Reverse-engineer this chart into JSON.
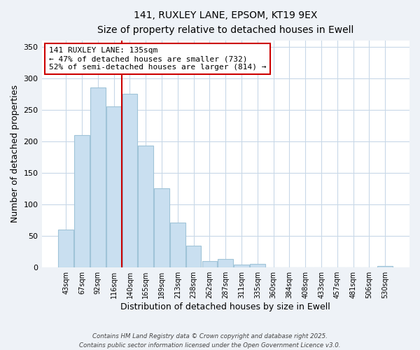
{
  "title": "141, RUXLEY LANE, EPSOM, KT19 9EX",
  "subtitle": "Size of property relative to detached houses in Ewell",
  "xlabel": "Distribution of detached houses by size in Ewell",
  "ylabel": "Number of detached properties",
  "bar_labels": [
    "43sqm",
    "67sqm",
    "92sqm",
    "116sqm",
    "140sqm",
    "165sqm",
    "189sqm",
    "213sqm",
    "238sqm",
    "262sqm",
    "287sqm",
    "311sqm",
    "335sqm",
    "360sqm",
    "384sqm",
    "408sqm",
    "433sqm",
    "457sqm",
    "481sqm",
    "506sqm",
    "530sqm"
  ],
  "bar_values": [
    60,
    210,
    285,
    255,
    275,
    193,
    126,
    71,
    35,
    10,
    13,
    5,
    6,
    0,
    0,
    0,
    0,
    0,
    0,
    0,
    3
  ],
  "bar_color": "#c9dff0",
  "bar_edgecolor": "#a0c4d8",
  "vline_index": 4,
  "vline_color": "#cc0000",
  "annotation_title": "141 RUXLEY LANE: 135sqm",
  "annotation_line1": "← 47% of detached houses are smaller (732)",
  "annotation_line2": "52% of semi-detached houses are larger (814) →",
  "annotation_box_edgecolor": "#cc0000",
  "ylim": [
    0,
    360
  ],
  "yticks": [
    0,
    50,
    100,
    150,
    200,
    250,
    300,
    350
  ],
  "footer1": "Contains HM Land Registry data © Crown copyright and database right 2025.",
  "footer2": "Contains public sector information licensed under the Open Government Licence v3.0.",
  "background_color": "#eef2f7",
  "plot_background": "#ffffff",
  "grid_color": "#c8d8e8"
}
